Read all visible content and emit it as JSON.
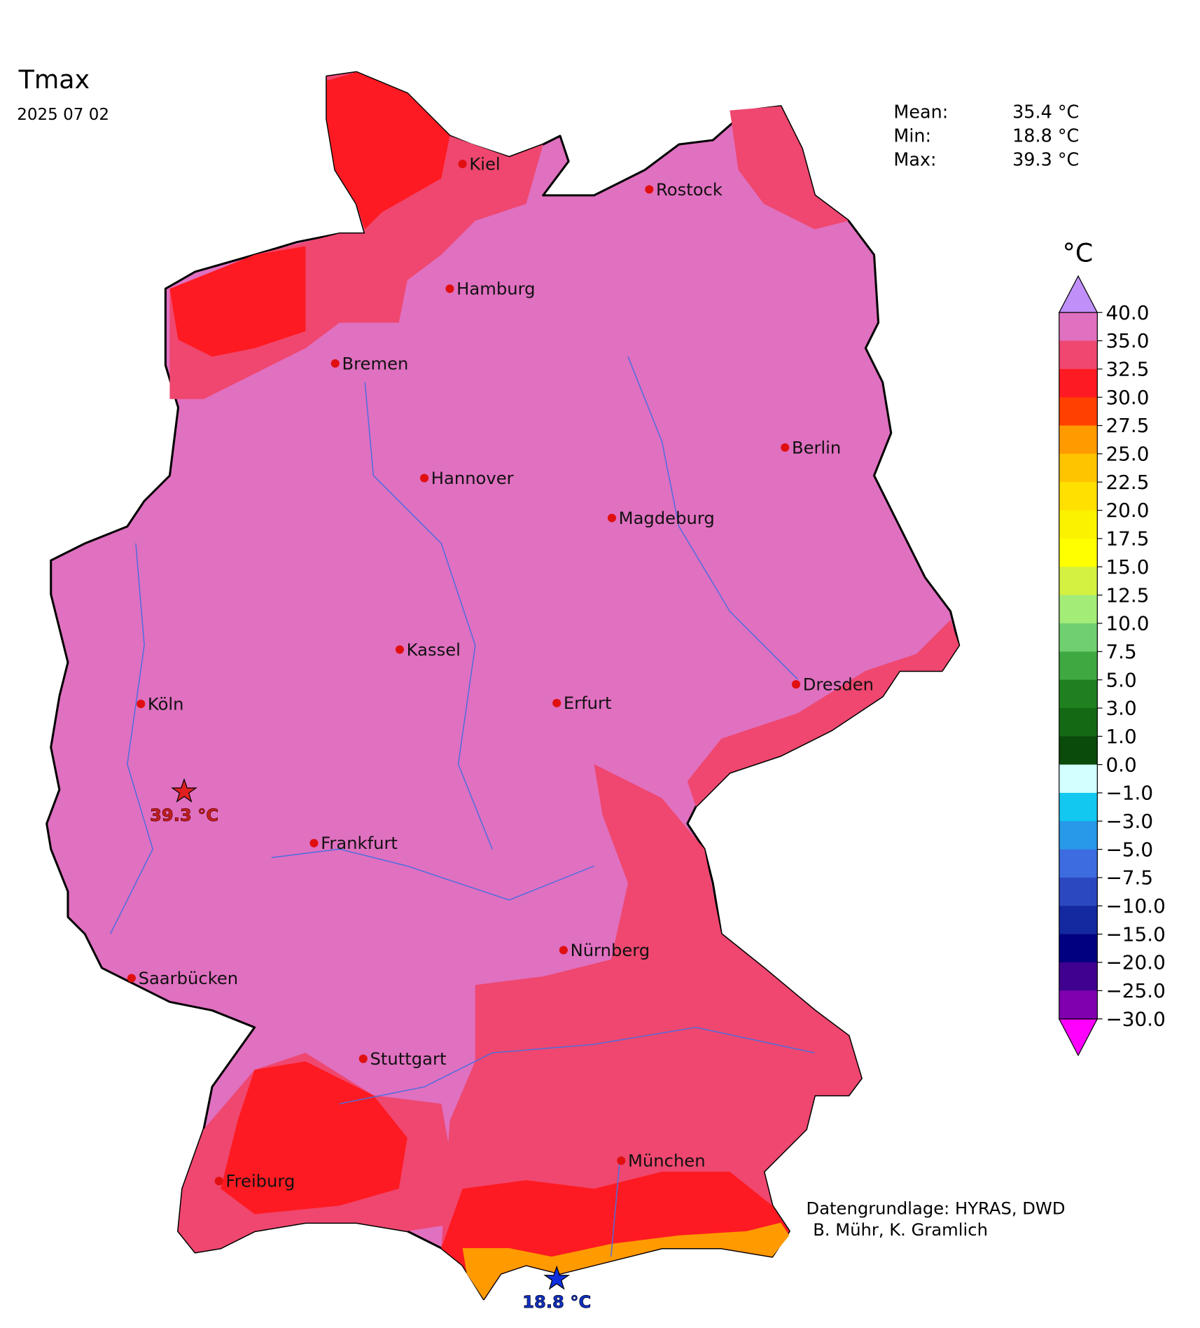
{
  "header": {
    "title": "Tmax",
    "date": "2025 07 02"
  },
  "stats": [
    {
      "name": "Mean:",
      "value": "35.4 °C"
    },
    {
      "name": "Min:",
      "value": "18.8 °C"
    },
    {
      "name": "Max:",
      "value": "39.3 °C"
    }
  ],
  "colorbar": {
    "unit": "°C",
    "ticks": [
      "40.0",
      "35.0",
      "32.5",
      "30.0",
      "27.5",
      "25.0",
      "22.5",
      "20.0",
      "17.5",
      "15.0",
      "12.5",
      "10.0",
      "7.5",
      "5.0",
      "3.0",
      "1.0",
      "0.0",
      "−1.0",
      "−3.0",
      "−5.0",
      "−7.5",
      "−10.0",
      "−15.0",
      "−20.0",
      "−25.0",
      "−30.0"
    ],
    "colors": [
      "#e070c0",
      "#ef476f",
      "#fe1a22",
      "#ff4000",
      "#ff9a00",
      "#ffc400",
      "#ffe000",
      "#fbf200",
      "#ffff00",
      "#d4f040",
      "#a4ec78",
      "#70d070",
      "#40a840",
      "#208020",
      "#146a14",
      "#0a4a0a",
      "#d2ffff",
      "#12c8f0",
      "#2898e8",
      "#3c6ce0",
      "#2c48c0",
      "#1428a0",
      "#000080",
      "#400090",
      "#8000b0",
      "#c000c0"
    ],
    "over_color": "#c090f8",
    "under_color": "#ff00ff"
  },
  "cities": [
    "Kiel",
    "Rostock",
    "Hamburg",
    "Bremen",
    "Berlin",
    "Hannover",
    "Magdeburg",
    "Kassel",
    "Dresden",
    "Köln",
    "Erfurt",
    "Frankfurt",
    "Nürnberg",
    "Saarbücken",
    "Stuttgart",
    "München",
    "Freiburg"
  ],
  "extremes": {
    "max_label": "39.3 °C",
    "min_label": "18.8 °C"
  },
  "credits": [
    "Datengrundlage: HYRAS, DWD",
    "B. Mühr, K. Gramlich"
  ]
}
